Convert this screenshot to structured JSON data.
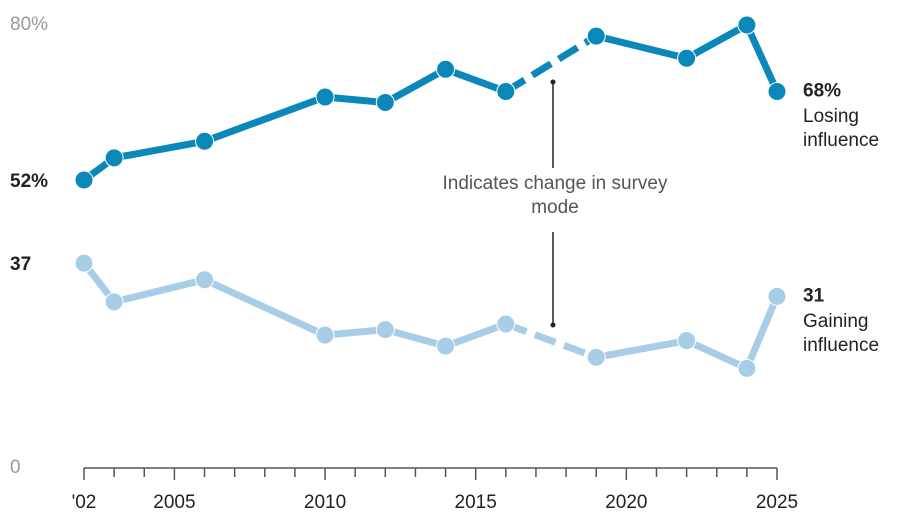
{
  "chart_data": {
    "type": "line",
    "x": [
      2002,
      2003,
      2006,
      2010,
      2012,
      2014,
      2016,
      2019,
      2022,
      2024,
      2025
    ],
    "series": [
      {
        "name": "Losing influence",
        "color": "#0b88b9",
        "values": [
          52,
          56,
          59,
          67,
          66,
          72,
          68,
          78,
          74,
          80,
          68
        ],
        "value_labels": [
          "52%",
          null,
          null,
          null,
          null,
          null,
          null,
          null,
          null,
          null,
          "68%"
        ]
      },
      {
        "name": "Gaining influence",
        "color": "#a8cde6",
        "values": [
          37,
          30,
          34,
          24,
          25,
          22,
          26,
          20,
          23,
          18,
          31
        ],
        "value_labels": [
          "37",
          null,
          null,
          null,
          null,
          null,
          null,
          null,
          null,
          null,
          "31"
        ]
      }
    ],
    "annotation": "Indicates change in survey mode",
    "xlim": [
      2002,
      2025
    ],
    "xticks": [
      {
        "value": 2002,
        "label": "'02"
      },
      2005,
      2010,
      2015,
      2020,
      2025
    ],
    "xminorticks": [
      2003,
      2004,
      2006,
      2007,
      2008,
      2009,
      2011,
      2012,
      2013,
      2014,
      2016,
      2017,
      2018,
      2019,
      2021,
      2022,
      2023,
      2024
    ],
    "ylim": [
      0,
      80
    ],
    "yticks": [
      0,
      {
        "value": 80,
        "label": "80%"
      }
    ],
    "grid": false
  }
}
